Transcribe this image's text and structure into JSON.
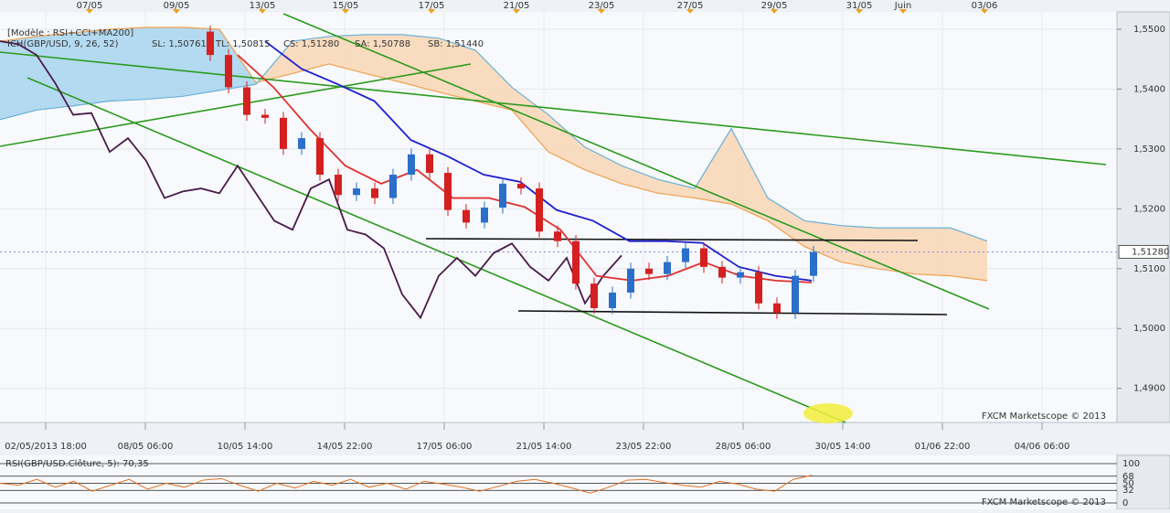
{
  "chart_data": [
    {
      "type": "candlestick",
      "ylim": [
        1.4843,
        1.5529
      ],
      "yticks": [
        {
          "value": 1.55,
          "label": "1,5500"
        },
        {
          "value": 1.54,
          "label": "1,5400"
        },
        {
          "value": 1.53,
          "label": "1,5300"
        },
        {
          "value": 1.52,
          "label": "1,5200"
        },
        {
          "value": 1.51,
          "label": "1,5100"
        },
        {
          "value": 1.5,
          "label": "1,5000"
        },
        {
          "value": 1.49,
          "label": "1,4900"
        }
      ],
      "xticks_top": [
        "07/05",
        "09/05",
        "13/05",
        "15/05",
        "17/05",
        "21/05",
        "23/05",
        "27/05",
        "29/05",
        "31/05",
        "Juin",
        "03/06"
      ],
      "xticks": [
        "02/05/2013 18:00",
        "08/05 06:00",
        "10/05 14:00",
        "14/05 22:00",
        "17/05 06:00",
        "21/05 14:00",
        "23/05 22:00",
        "28/05 06:00",
        "30/05 14:00",
        "01/06 22:00",
        "04/06 06:00"
      ],
      "annotations": [
        {
          "text": "[Modèle : RSI+CCI+MA200]",
          "color": "#666666"
        },
        {
          "text": "ICH(GBP/USD, 9, 26, 52)",
          "color": "#d42020"
        },
        {
          "text": "SL: 1,50761",
          "color": "#d42020"
        },
        {
          "text": "TL: 1,50815",
          "color": "#1f1fd0"
        },
        {
          "text": "CS: 1,51280",
          "color": "#222222"
        },
        {
          "text": "SA: 1,50788",
          "color": "#e8913a"
        },
        {
          "text": "SB: 1,51440",
          "color": "#3a9ad0"
        }
      ],
      "current": {
        "value": 1.5128,
        "label": "1,51280"
      },
      "watermark": "FXCM Marketscope © 2013",
      "up_color": "#2a6fc9",
      "down_color": "#d42020",
      "open": [
        1.5496,
        1.5457,
        1.5403,
        1.5357,
        1.5352,
        1.53,
        1.5318,
        1.5257,
        1.5223,
        1.5234,
        1.5218,
        1.5257,
        1.5291,
        1.526,
        1.5198,
        1.5177,
        1.5202,
        1.5242,
        1.5234,
        1.5162,
        1.5146,
        1.5075,
        1.5034,
        1.506,
        1.51,
        1.5091,
        1.5111,
        1.5134,
        1.5103,
        1.5085,
        1.5094,
        1.5042,
        1.5026,
        1.5088
      ],
      "high": [
        1.5506,
        1.5467,
        1.5413,
        1.5367,
        1.5362,
        1.5328,
        1.5328,
        1.5267,
        1.5244,
        1.5244,
        1.5267,
        1.5301,
        1.5301,
        1.527,
        1.5208,
        1.5212,
        1.5252,
        1.5252,
        1.5244,
        1.5172,
        1.5156,
        1.5085,
        1.507,
        1.511,
        1.511,
        1.5121,
        1.5144,
        1.5144,
        1.5113,
        1.5104,
        1.5104,
        1.5052,
        1.5098,
        1.5138
      ],
      "low": [
        1.5447,
        1.5393,
        1.5347,
        1.5342,
        1.529,
        1.529,
        1.5247,
        1.5213,
        1.5213,
        1.5208,
        1.5208,
        1.5247,
        1.525,
        1.5188,
        1.5167,
        1.5167,
        1.5192,
        1.5224,
        1.5152,
        1.5136,
        1.5065,
        1.5024,
        1.5024,
        1.505,
        1.5081,
        1.5081,
        1.5101,
        1.5093,
        1.5075,
        1.5075,
        1.5032,
        1.5016,
        1.5016,
        1.5078
      ],
      "close": [
        1.5457,
        1.5403,
        1.5357,
        1.5352,
        1.53,
        1.5318,
        1.5257,
        1.5223,
        1.5234,
        1.5218,
        1.5257,
        1.5291,
        1.526,
        1.5198,
        1.5177,
        1.5202,
        1.5242,
        1.5234,
        1.5162,
        1.5146,
        1.5075,
        1.5034,
        1.506,
        1.51,
        1.5091,
        1.5111,
        1.5134,
        1.5103,
        1.5085,
        1.5094,
        1.5042,
        1.5026,
        1.5088,
        1.5128
      ],
      "series": [
        {
          "color": "#f0a050",
          "cloud_color": "#f8d8b8",
          "values": [
            1.548,
            1.5488,
            1.5494,
            1.55,
            1.5503,
            1.5503,
            1.55,
            1.5411,
            1.5426,
            1.5442,
            1.5426,
            1.5411,
            1.5395,
            1.538,
            1.5365,
            1.5295,
            1.5265,
            1.5242,
            1.5226,
            1.5218,
            1.5208,
            1.518,
            1.5137,
            1.5111,
            1.51,
            1.5091,
            1.5088,
            1.508
          ]
        },
        {
          "color": "#6ab0d8",
          "cloud_color": "#acd6ef",
          "values": [
            1.5349,
            1.5365,
            1.5372,
            1.538,
            1.5383,
            1.5388,
            1.5398,
            1.5408,
            1.548,
            1.5488,
            1.5491,
            1.5491,
            1.5485,
            1.5465,
            1.5403,
            1.5357,
            1.5303,
            1.5272,
            1.5249,
            1.5234,
            1.5334,
            1.5218,
            1.518,
            1.5172,
            1.5168,
            1.5168,
            1.5168,
            1.5146
          ]
        },
        {
          "color": "#4a1a4a",
          "values": [
            1.548,
            1.5475,
            1.5457,
            1.5411,
            1.5357,
            1.536,
            1.5295,
            1.5318,
            1.528,
            1.5218,
            1.5229,
            1.5234,
            1.5226,
            1.5272,
            1.5226,
            1.518,
            1.5165,
            1.5234,
            1.5249,
            1.5165,
            1.5157,
            1.5134,
            1.5057,
            1.5018,
            1.5088,
            1.5118,
            1.5088,
            1.5126,
            1.5142,
            1.5103,
            1.508,
            1.5118,
            1.5042,
            1.5088,
            1.5122
          ]
        },
        {
          "color": "#1f1fd0",
          "values": [
            1.548,
            1.5434,
            1.5408,
            1.538,
            1.5315,
            1.5288,
            1.5257,
            1.5245,
            1.5198,
            1.518,
            1.5146,
            1.5146,
            1.5143,
            1.5103,
            1.5088,
            1.508
          ]
        },
        {
          "color": "#e03030",
          "values": [
            1.5457,
            1.5403,
            1.5334,
            1.5272,
            1.5242,
            1.5265,
            1.5218,
            1.5218,
            1.5203,
            1.5165,
            1.5088,
            1.508,
            1.5088,
            1.5111,
            1.5088,
            1.508,
            1.5077
          ]
        }
      ]
    },
    {
      "type": "line",
      "title": "RSI(GBP/USD.Clôture, 5): 70,35",
      "ylim": [
        0,
        100
      ],
      "yticks": [
        100,
        68,
        50,
        32,
        0
      ],
      "color": "#e07020",
      "watermark": "FXCM Marketscope © 2013",
      "values": [
        50,
        45,
        60,
        40,
        55,
        30,
        45,
        60,
        35,
        50,
        40,
        58,
        62,
        45,
        30,
        50,
        38,
        55,
        45,
        60,
        40,
        50,
        35,
        55,
        48,
        40,
        30,
        42,
        55,
        60,
        50,
        38,
        25,
        40,
        58,
        60,
        52,
        45,
        40,
        55,
        48,
        35,
        30,
        60,
        70.35
      ]
    }
  ]
}
